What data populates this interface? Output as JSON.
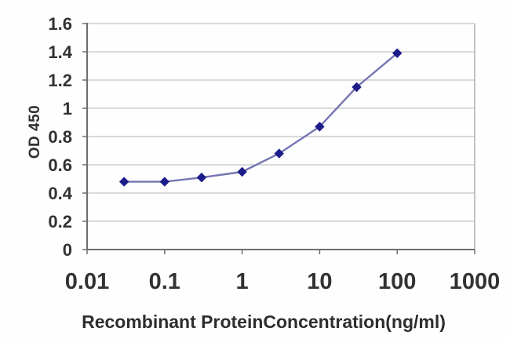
{
  "chart_data": {
    "type": "line",
    "title": "",
    "xlabel": "Recombinant ProteinConcentration(ng/ml)",
    "ylabel": "OD 450",
    "x_scale": "log",
    "y_scale": "linear",
    "x": [
      0.03,
      0.1,
      0.3,
      1,
      3,
      10,
      30,
      100
    ],
    "y": [
      0.48,
      0.48,
      0.51,
      0.55,
      0.68,
      0.87,
      1.15,
      1.39
    ],
    "series": [
      {
        "name": "OD 450",
        "marker": "diamond"
      }
    ],
    "xlim": [
      0.01,
      1000
    ],
    "ylim": [
      0,
      1.6
    ],
    "xticks": [
      0.01,
      0.1,
      1,
      10,
      100,
      1000
    ],
    "xtick_labels": [
      "0.01",
      "0.1",
      "1",
      "10",
      "100",
      "1000"
    ],
    "yticks": [
      0,
      0.2,
      0.4,
      0.6,
      0.8,
      1,
      1.2,
      1.4,
      1.6
    ],
    "ytick_labels": [
      "0",
      "0.2",
      "0.4",
      "0.6",
      "0.8",
      "1",
      "1.2",
      "1.4",
      "1.6"
    ],
    "grid": "horizontal",
    "legend": "none",
    "colors": {
      "line": "#7575b2",
      "marker": "#1c1c8a",
      "grid": "#c3c3c3",
      "border": "#b0b0b0",
      "axis": "#6e6e6e",
      "text": "#323232",
      "background": "#fefefe"
    }
  }
}
